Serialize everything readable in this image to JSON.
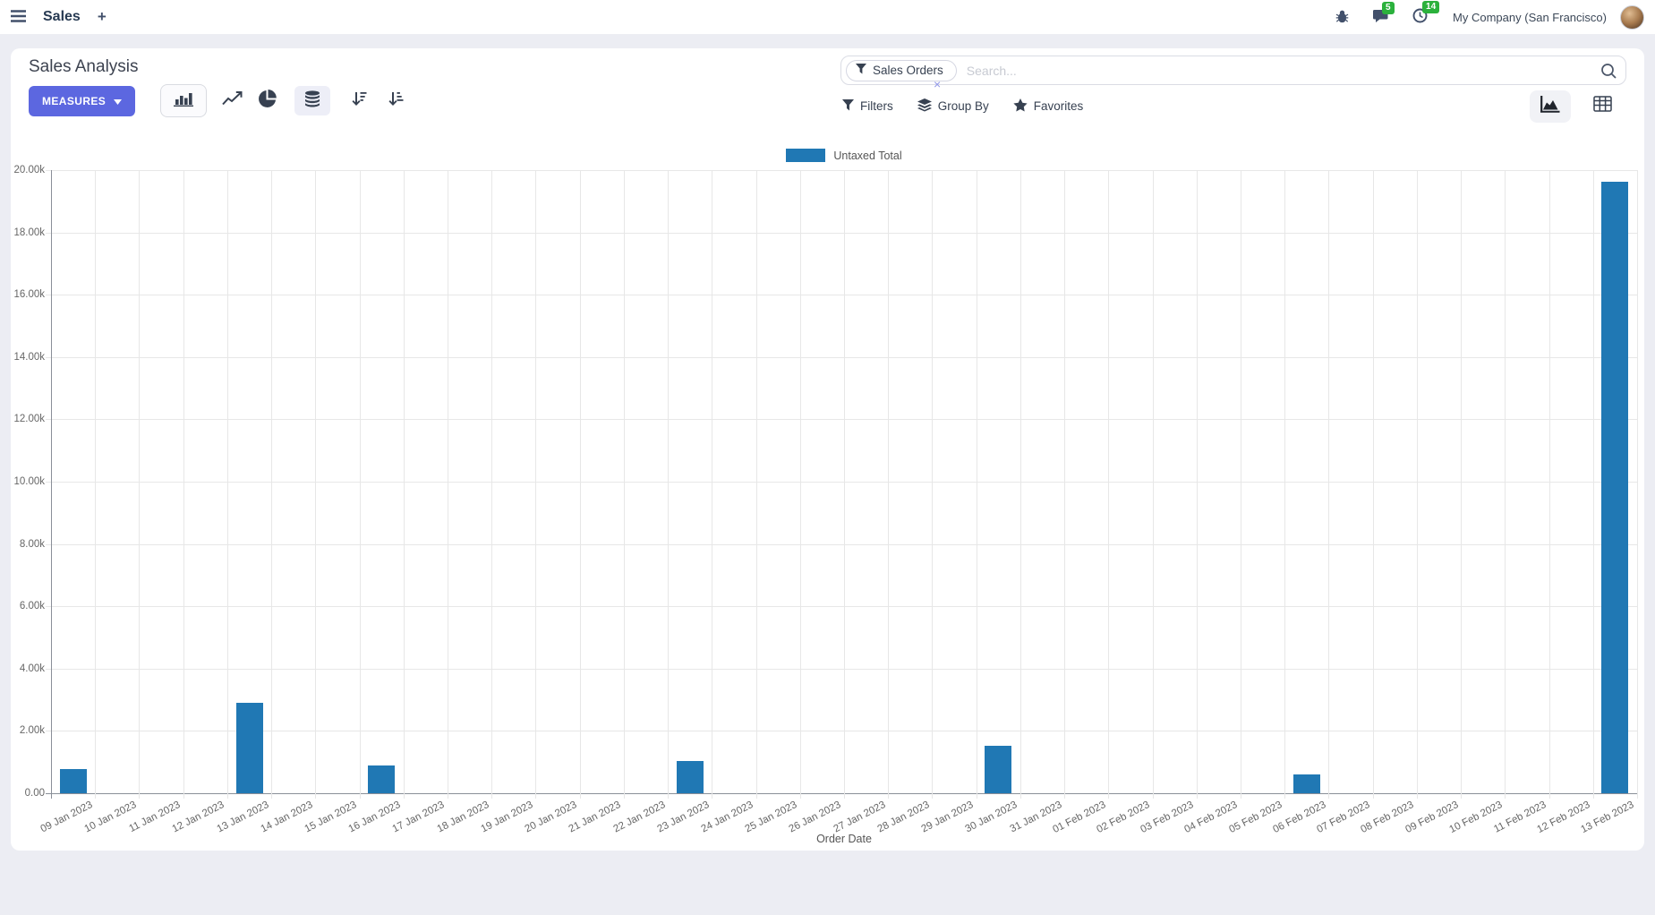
{
  "navbar": {
    "app_name": "Sales",
    "new_tab_label": "+",
    "badges": {
      "messages": "5",
      "activities": "14"
    },
    "company": "My Company (San Francisco)",
    "icons": [
      "menu-icon",
      "plus-icon",
      "bug-icon",
      "messages-icon",
      "activities-clock-icon",
      "avatar"
    ]
  },
  "control_panel": {
    "title": "Sales Analysis",
    "measures_label": "MEASURES",
    "search": {
      "facet": "Sales Orders",
      "facet_remove": "×",
      "placeholder": "Search..."
    },
    "filters_label": "Filters",
    "group_by_label": "Group By",
    "favorites_label": "Favorites",
    "chart_type_buttons": [
      "bar-chart",
      "line-chart",
      "pie-chart"
    ],
    "stacked_toggle": "stacked",
    "sort_buttons": [
      "sort-descending",
      "sort-ascending"
    ],
    "view_switcher": [
      "graph-view",
      "pivot-view"
    ],
    "active_chart_type": "bar-chart",
    "active_view": "graph-view"
  },
  "colors": {
    "accent": "#5c67e0",
    "bar": "#2078b4",
    "badge_green": "#2bb13c"
  },
  "chart_data": {
    "type": "bar",
    "title": "",
    "series_name": "Untaxed Total",
    "legend": [
      "Untaxed Total"
    ],
    "legend_position": "top",
    "xlabel": "Order Date",
    "ylabel": "",
    "ylim": [
      0,
      20000
    ],
    "ytick_step": 2000,
    "ytick_labels": [
      "0.00",
      "2.00k",
      "4.00k",
      "6.00k",
      "8.00k",
      "10.00k",
      "12.00k",
      "14.00k",
      "16.00k",
      "18.00k",
      "20.00k"
    ],
    "grid": true,
    "categories": [
      "09 Jan 2023",
      "10 Jan 2023",
      "11 Jan 2023",
      "12 Jan 2023",
      "13 Jan 2023",
      "14 Jan 2023",
      "15 Jan 2023",
      "16 Jan 2023",
      "17 Jan 2023",
      "18 Jan 2023",
      "19 Jan 2023",
      "20 Jan 2023",
      "21 Jan 2023",
      "22 Jan 2023",
      "23 Jan 2023",
      "24 Jan 2023",
      "25 Jan 2023",
      "26 Jan 2023",
      "27 Jan 2023",
      "28 Jan 2023",
      "29 Jan 2023",
      "30 Jan 2023",
      "31 Jan 2023",
      "01 Feb 2023",
      "02 Feb 2023",
      "03 Feb 2023",
      "04 Feb 2023",
      "05 Feb 2023",
      "06 Feb 2023",
      "07 Feb 2023",
      "08 Feb 2023",
      "09 Feb 2023",
      "10 Feb 2023",
      "11 Feb 2023",
      "12 Feb 2023",
      "13 Feb 2023"
    ],
    "values": [
      780,
      0,
      0,
      0,
      2900,
      0,
      0,
      890,
      0,
      0,
      0,
      0,
      0,
      0,
      1030,
      0,
      0,
      0,
      0,
      0,
      0,
      1520,
      0,
      0,
      0,
      0,
      0,
      0,
      590,
      0,
      0,
      0,
      0,
      0,
      0,
      19630
    ]
  }
}
